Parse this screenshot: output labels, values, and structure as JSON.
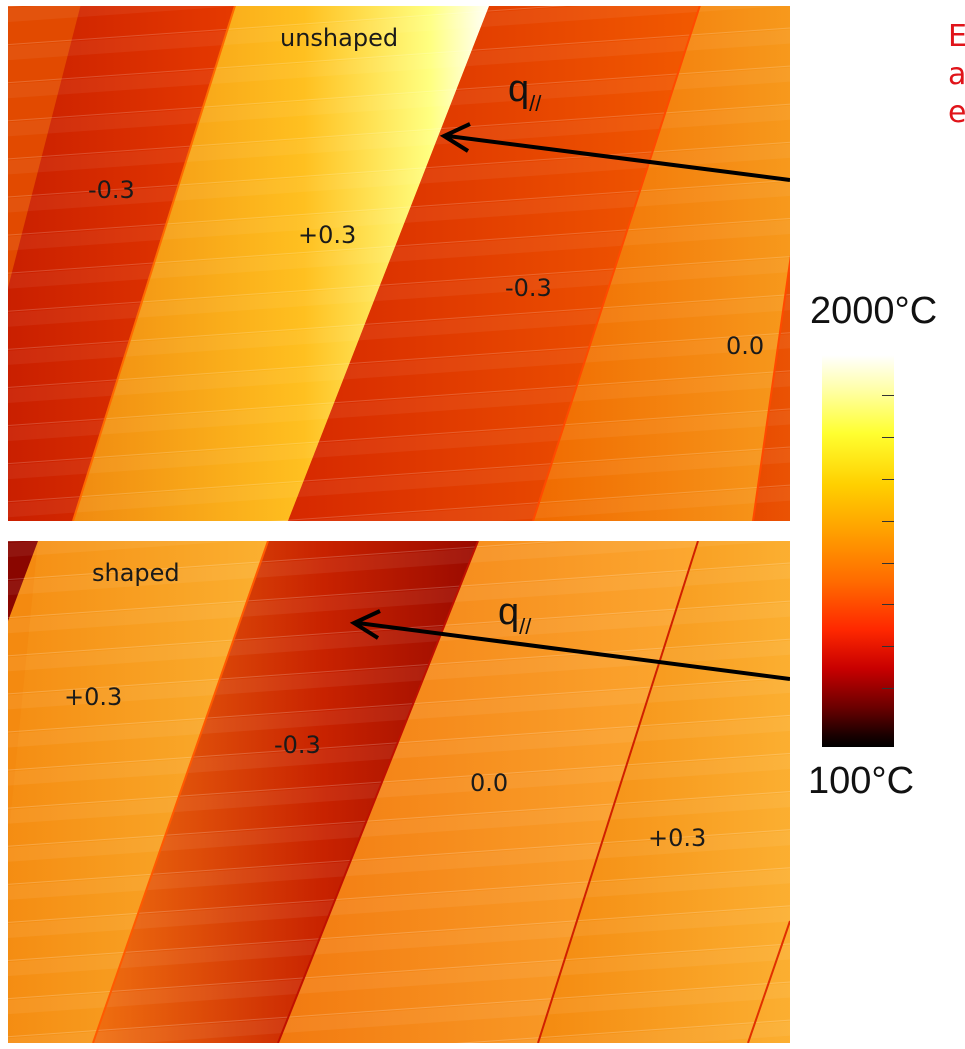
{
  "panels": {
    "top": {
      "title": "unshaped",
      "labels": [
        "-0.3",
        "+0.3",
        "-0.3",
        "0.0"
      ],
      "flux": "q",
      "flux_sub": "//"
    },
    "bottom": {
      "title": "shaped",
      "labels": [
        "+0.3",
        "-0.3",
        "0.0",
        "+0.3"
      ],
      "flux": "q",
      "flux_sub": "//"
    }
  },
  "colorbar": {
    "max_label": "2000°C",
    "min_label": "100°C",
    "colors": [
      "#000000",
      "#8b0000",
      "#ff2000",
      "#ff8c00",
      "#ffd000",
      "#ffff40",
      "#ffffff"
    ]
  },
  "note": {
    "lines": [
      "E",
      "a",
      "e"
    ],
    "color": "#e0141a"
  }
}
